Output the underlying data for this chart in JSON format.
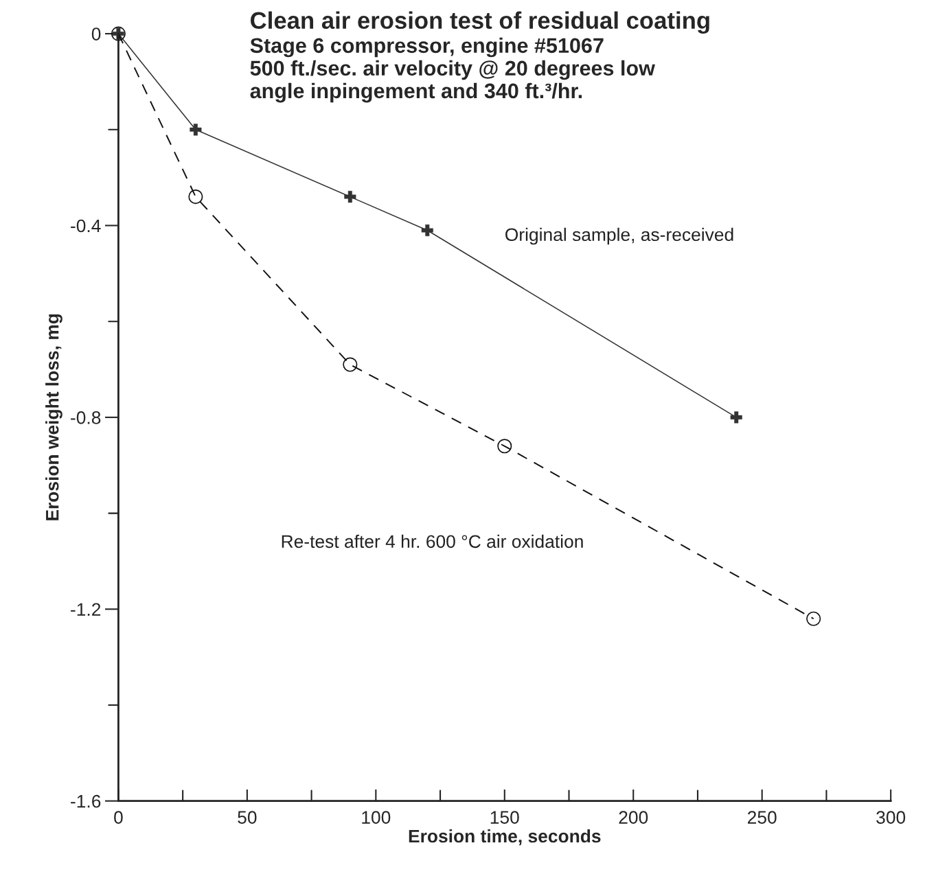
{
  "chart_data": {
    "type": "line",
    "title": "Clean air erosion test of residual coating",
    "subtitle": "Stage 6 compressor, engine #51067\n500 ft./sec. air velocity @ 20 degrees low\nangle inpingement and 340 ft.³/hr.",
    "xlabel": "Erosion time, seconds",
    "ylabel": "Erosion weight loss, mg",
    "series": [
      {
        "name": "Original sample, as-received",
        "color": "#333333",
        "marker": "cross",
        "line_style": "solid",
        "x": [
          0,
          30,
          90,
          120,
          240
        ],
        "values": [
          0,
          -0.2,
          -0.34,
          -0.41,
          -0.8
        ]
      },
      {
        "name": "Re-test after 4 hr. 600 °C air oxidation",
        "color": "#111111",
        "marker": "circle",
        "line_style": "dashed",
        "x": [
          0,
          30,
          90,
          150,
          270
        ],
        "values": [
          0,
          -0.34,
          -0.69,
          -0.86,
          -1.22
        ]
      }
    ],
    "xlim": [
      0,
      300
    ],
    "ylim": [
      -1.6,
      0
    ],
    "xticks": [
      0,
      {
        "value": 25,
        "label": null
      },
      50,
      {
        "value": 75,
        "label": null
      },
      100,
      {
        "value": 125,
        "label": null
      },
      150,
      {
        "value": 175,
        "label": null
      },
      200,
      {
        "value": 225,
        "label": null
      },
      250,
      {
        "value": 275,
        "label": null
      },
      300
    ],
    "yticks": [
      {
        "value": 0,
        "label": "0"
      },
      {
        "value": -0.2,
        "label": null
      },
      -0.4,
      {
        "value": -0.6,
        "label": null
      },
      -0.8,
      {
        "value": -1.0,
        "label": null
      },
      -1.2,
      {
        "value": -1.4,
        "label": null
      },
      -1.6
    ],
    "grid": false,
    "legend": false
  }
}
